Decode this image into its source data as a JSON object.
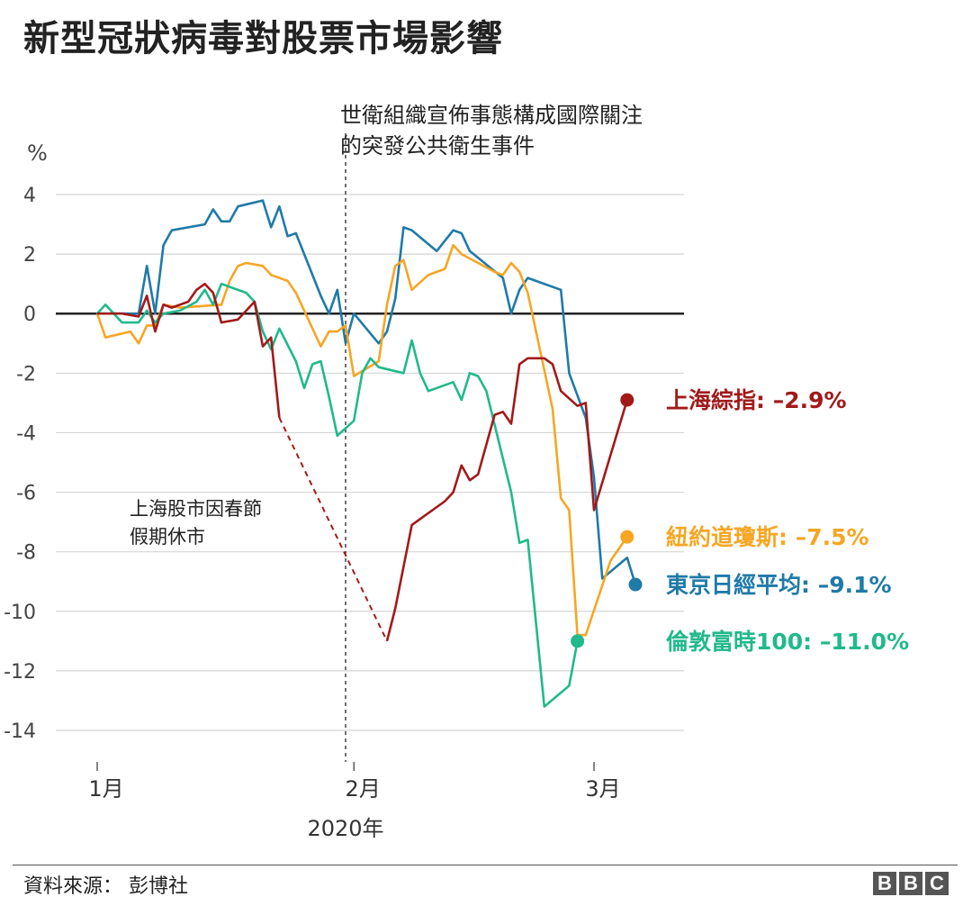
{
  "title": "新型冠狀病毒對股票市場影響",
  "source": "資料來源： 彭博社",
  "logo": [
    "B",
    "B",
    "C"
  ],
  "chart_data": {
    "type": "line",
    "ylabel": "%",
    "ylim": [
      -14,
      4
    ],
    "yticks": [
      4,
      2,
      0,
      -2,
      -4,
      -6,
      -8,
      -10,
      -12,
      -14
    ],
    "ytick_labels": [
      "4",
      "2",
      "0",
      "-2",
      "-4",
      "-6",
      "-8",
      "-10",
      "-12",
      "-14"
    ],
    "xlim": [
      0,
      73
    ],
    "xticks": [
      {
        "x": 0,
        "label": "1月"
      },
      {
        "x": 31,
        "label": "2月"
      },
      {
        "x": 60,
        "label": "3月"
      }
    ],
    "xlabel": "2020年",
    "grid": true,
    "vline": {
      "x": 30,
      "label_line1": "世衛組織宣佈事態構成國際關注",
      "label_line2": "的突發公共衛生事件"
    },
    "annotation": {
      "line1": "上海股市因春節",
      "line2": "假期休市"
    },
    "series": [
      {
        "name": "東京日經平均",
        "color": "#1f7aa8",
        "label": "東京日經平均: –9.1%",
        "points": [
          [
            0,
            0
          ],
          [
            3,
            0
          ],
          [
            5,
            0
          ],
          [
            6,
            1.6
          ],
          [
            7,
            0
          ],
          [
            8,
            2.3
          ],
          [
            9,
            2.8
          ],
          [
            13,
            3.0
          ],
          [
            14,
            3.5
          ],
          [
            15,
            3.1
          ],
          [
            16,
            3.1
          ],
          [
            17,
            3.6
          ],
          [
            20,
            3.8
          ],
          [
            21,
            2.9
          ],
          [
            22,
            3.6
          ],
          [
            23,
            2.6
          ],
          [
            24,
            2.7
          ],
          [
            27,
            0.6
          ],
          [
            28,
            0
          ],
          [
            29,
            0.8
          ],
          [
            30,
            -1.0
          ],
          [
            31,
            0
          ],
          [
            34,
            -1.0
          ],
          [
            35,
            -0.6
          ],
          [
            36,
            0.5
          ],
          [
            37,
            2.9
          ],
          [
            38,
            2.8
          ],
          [
            41,
            2.1
          ],
          [
            43,
            2.8
          ],
          [
            44,
            2.7
          ],
          [
            45,
            2.1
          ],
          [
            49,
            1.2
          ],
          [
            50,
            0
          ],
          [
            51,
            0.8
          ],
          [
            52,
            1.2
          ],
          [
            56,
            0.8
          ],
          [
            57,
            -2.0
          ],
          [
            59,
            -3.5
          ],
          [
            60,
            -5.5
          ],
          [
            61,
            -8.9
          ],
          [
            64,
            -8.2
          ],
          [
            65,
            -9.1
          ]
        ]
      },
      {
        "name": "紐約道瓊斯",
        "color": "#f6a623",
        "label": "紐約道瓊斯: –7.5%",
        "points": [
          [
            0,
            0
          ],
          [
            1,
            -0.8
          ],
          [
            4,
            -0.6
          ],
          [
            5,
            -1.0
          ],
          [
            6,
            -0.4
          ],
          [
            7,
            -0.4
          ],
          [
            8,
            0.3
          ],
          [
            10,
            0.2
          ],
          [
            15,
            0.3
          ],
          [
            16,
            1.1
          ],
          [
            17,
            1.6
          ],
          [
            18,
            1.7
          ],
          [
            20,
            1.6
          ],
          [
            21,
            1.3
          ],
          [
            23,
            1.1
          ],
          [
            24,
            0.7
          ],
          [
            27,
            -1.1
          ],
          [
            28,
            -0.6
          ],
          [
            29,
            -0.6
          ],
          [
            30,
            -0.4
          ],
          [
            31,
            -2.1
          ],
          [
            34,
            -1.6
          ],
          [
            35,
            0.3
          ],
          [
            36,
            1.6
          ],
          [
            37,
            1.8
          ],
          [
            38,
            0.8
          ],
          [
            40,
            1.3
          ],
          [
            41,
            1.4
          ],
          [
            42,
            1.5
          ],
          [
            43,
            2.3
          ],
          [
            44,
            2.0
          ],
          [
            48,
            1.4
          ],
          [
            49,
            1.3
          ],
          [
            50,
            1.7
          ],
          [
            51,
            1.4
          ],
          [
            52,
            0.7
          ],
          [
            55,
            -3.2
          ],
          [
            56,
            -6.2
          ],
          [
            57,
            -6.6
          ],
          [
            58,
            -10.8
          ],
          [
            59,
            -10.8
          ],
          [
            62,
            -8.3
          ],
          [
            64,
            -7.5
          ]
        ]
      },
      {
        "name": "倫敦富時100",
        "color": "#21b98b",
        "label": "倫敦富時100: –11.0%",
        "points": [
          [
            0,
            0
          ],
          [
            1,
            0.3
          ],
          [
            3,
            -0.3
          ],
          [
            5,
            -0.3
          ],
          [
            6,
            0.1
          ],
          [
            7,
            -0.3
          ],
          [
            8,
            0
          ],
          [
            10,
            0.1
          ],
          [
            12,
            0.4
          ],
          [
            13,
            0.8
          ],
          [
            14,
            0.3
          ],
          [
            15,
            1.0
          ],
          [
            18,
            0.7
          ],
          [
            19,
            0.4
          ],
          [
            20,
            -0.6
          ],
          [
            21,
            -1.2
          ],
          [
            22,
            -0.5
          ],
          [
            24,
            -1.6
          ],
          [
            25,
            -2.5
          ],
          [
            26,
            -1.7
          ],
          [
            27,
            -1.6
          ],
          [
            28,
            -2.8
          ],
          [
            29,
            -4.1
          ],
          [
            31,
            -3.6
          ],
          [
            32,
            -2.0
          ],
          [
            33,
            -1.5
          ],
          [
            34,
            -1.8
          ],
          [
            37,
            -2.0
          ],
          [
            38,
            -0.9
          ],
          [
            39,
            -2.0
          ],
          [
            40,
            -2.6
          ],
          [
            43,
            -2.3
          ],
          [
            44,
            -2.9
          ],
          [
            45,
            -2.0
          ],
          [
            46,
            -2.1
          ],
          [
            47,
            -2.6
          ],
          [
            50,
            -6.0
          ],
          [
            51,
            -7.7
          ],
          [
            52,
            -7.6
          ],
          [
            54,
            -13.2
          ],
          [
            57,
            -12.5
          ],
          [
            58,
            -11.0
          ]
        ]
      },
      {
        "name": "上海綜指",
        "color": "#a11a1a",
        "label": "上海綜指: –2.9%",
        "points": [
          [
            0,
            0
          ],
          [
            3,
            0
          ],
          [
            5,
            -0.1
          ],
          [
            6,
            0.6
          ],
          [
            7,
            -0.6
          ],
          [
            8,
            0.3
          ],
          [
            9,
            0.2
          ],
          [
            11,
            0.4
          ],
          [
            12,
            0.8
          ],
          [
            13,
            1.0
          ],
          [
            14,
            0.7
          ],
          [
            15,
            -0.3
          ],
          [
            17,
            -0.2
          ],
          [
            19,
            0.4
          ],
          [
            20,
            -1.1
          ],
          [
            21,
            -0.8
          ],
          [
            22,
            -3.5
          ],
          [
            35,
            -11.0
          ],
          [
            36,
            -9.9
          ],
          [
            37,
            -8.5
          ],
          [
            38,
            -7.1
          ],
          [
            39,
            -6.9
          ],
          [
            42,
            -6.3
          ],
          [
            43,
            -6.0
          ],
          [
            44,
            -5.1
          ],
          [
            45,
            -5.6
          ],
          [
            46,
            -5.4
          ],
          [
            48,
            -3.4
          ],
          [
            49,
            -3.3
          ],
          [
            50,
            -3.7
          ],
          [
            51,
            -1.7
          ],
          [
            52,
            -1.5
          ],
          [
            54,
            -1.5
          ],
          [
            55,
            -1.7
          ],
          [
            56,
            -2.6
          ],
          [
            58,
            -3.1
          ],
          [
            59,
            -3.0
          ],
          [
            60,
            -6.6
          ],
          [
            64,
            -2.9
          ]
        ]
      }
    ],
    "gap": {
      "series": "上海綜指",
      "from": 22,
      "to": 35
    }
  }
}
